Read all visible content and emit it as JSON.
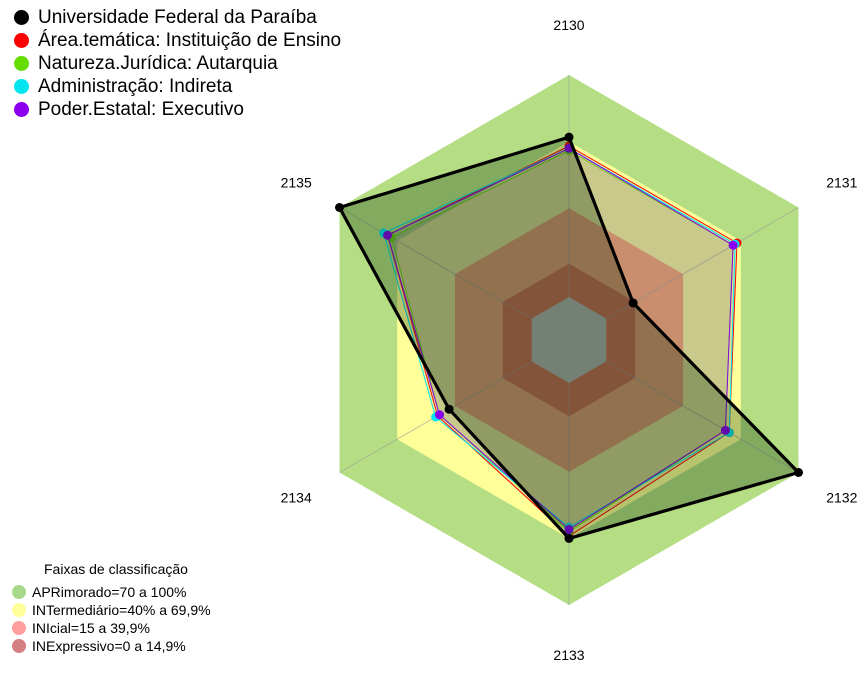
{
  "chart_data": {
    "type": "radar",
    "axes": [
      "2130",
      "2131",
      "2132",
      "2133",
      "2134",
      "2135"
    ],
    "range": [
      0,
      100
    ],
    "series": [
      {
        "name": "Universidade Federal da Paraíba",
        "color": "#000000",
        "values": [
          72,
          14,
          100,
          70,
          43,
          100
        ]
      },
      {
        "name": "Área.temática: Instituição de Ensino",
        "color": "#ff0000",
        "values": [
          68,
          68,
          64,
          69,
          49,
          75
        ]
      },
      {
        "name": "Natureza.Jurídica: Autarquia",
        "color": "#66dd00",
        "values": [
          66,
          66,
          62,
          67,
          48,
          73
        ]
      },
      {
        "name": "Administração: Indireta",
        "color": "#00e5ee",
        "values": [
          67,
          67,
          64,
          65,
          50,
          77
        ]
      },
      {
        "name": "Poder.Estatal: Executivo",
        "color": "#8a00ee",
        "values": [
          67,
          66,
          62,
          66,
          48,
          75
        ]
      }
    ],
    "bands_title": "Faixas de classificação",
    "bands": [
      {
        "label": "APRimorado=70 a 100%",
        "from": 70,
        "to": 100,
        "color": "#b5de84",
        "legend_color": "#a8d98a"
      },
      {
        "label": "INTermediário=40% a 69,9%",
        "from": 40,
        "to": 70,
        "color": "#ffff99",
        "legend_color": "#ffff99"
      },
      {
        "label": "INIcial=15 a 39,9%",
        "from": 15,
        "to": 40,
        "color": "#ff9e66",
        "legend_color": "#ff9f9f"
      },
      {
        "label": "INExpressivo=0 a 14,9%",
        "from": 0,
        "to": 15,
        "color": "#e35a37",
        "legend_color": "#d48080"
      }
    ],
    "center_color": "#c0c0c0",
    "grid": true
  }
}
